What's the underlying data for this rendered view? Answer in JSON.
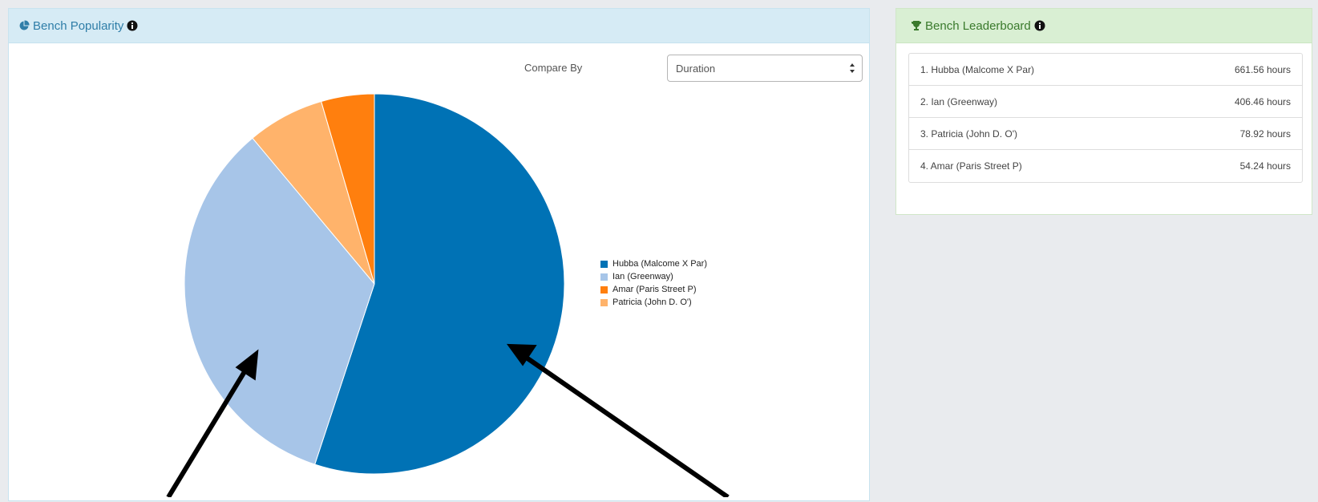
{
  "popularity": {
    "title": "Bench Popularity",
    "compare_label": "Compare By",
    "compare_value": "Duration"
  },
  "leaderboard": {
    "title": "Bench Leaderboard",
    "rows": [
      {
        "name": "1. Hubba (Malcome X Par)",
        "value": "661.56 hours"
      },
      {
        "name": "2. Ian (Greenway)",
        "value": "406.46 hours"
      },
      {
        "name": "3. Patricia (John D. O')",
        "value": "78.92 hours"
      },
      {
        "name": "4. Amar (Paris Street P)",
        "value": "54.24 hours"
      }
    ]
  },
  "chart_data": {
    "type": "pie",
    "title": "",
    "slices": [
      {
        "label": "Hubba (Malcome X Par)",
        "value": 661.56,
        "color": "#0072b5"
      },
      {
        "label": "Ian (Greenway)",
        "value": 406.46,
        "color": "#a7c5e8"
      },
      {
        "label": "Patricia (John D. O')",
        "value": 78.92,
        "color": "#ffb36b"
      },
      {
        "label": "Amar (Paris Street P)",
        "value": 54.24,
        "color": "#ff7f0e"
      }
    ],
    "legend": [
      {
        "label": "Hubba (Malcome X Par)",
        "color": "#0072b5"
      },
      {
        "label": "Ian (Greenway)",
        "color": "#a7c5e8"
      },
      {
        "label": "Amar (Paris Street P)",
        "color": "#ff7f0e"
      },
      {
        "label": "Patricia (John D. O')",
        "color": "#ffb36b"
      }
    ],
    "legend_position": "right"
  },
  "icons": {
    "pie_icon": "pie-chart-icon",
    "trophy_icon": "trophy-icon",
    "info_icon": "info-icon"
  },
  "colors": {
    "popularity_header": "#d6ebf5",
    "leaderboard_header": "#d9efd3"
  }
}
